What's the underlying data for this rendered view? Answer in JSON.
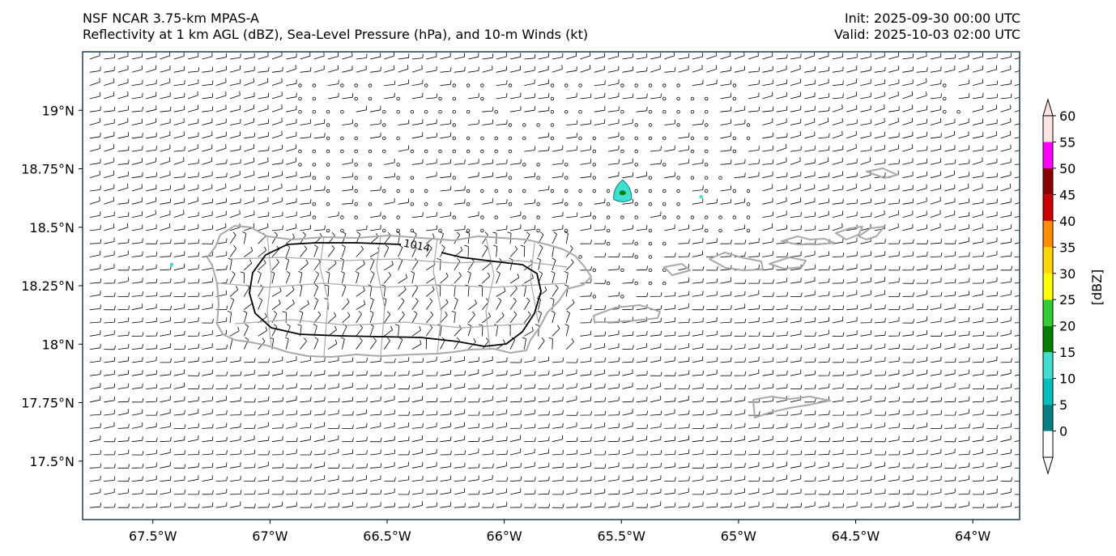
{
  "header": {
    "line1_left": "NSF NCAR 3.75-km MPAS-A",
    "line2_left": "Reflectivity at 1 km AGL (dBZ), Sea-Level Pressure (hPa), and 10-m Winds (kt)",
    "line1_right": "Init: 2025-09-30 00:00 UTC",
    "line2_right": "Valid: 2025-10-03 02:00 UTC"
  },
  "map": {
    "lon_range": [
      -67.8,
      -63.8
    ],
    "lat_range": [
      17.25,
      19.25
    ],
    "lat_ticks": [
      {
        "value": 19.0,
        "label": "19°N"
      },
      {
        "value": 18.75,
        "label": "18.75°N"
      },
      {
        "value": 18.5,
        "label": "18.5°N"
      },
      {
        "value": 18.25,
        "label": "18.25°N"
      },
      {
        "value": 18.0,
        "label": "18°N"
      },
      {
        "value": 17.75,
        "label": "17.75°N"
      },
      {
        "value": 17.5,
        "label": "17.5°N"
      }
    ],
    "lon_ticks": [
      {
        "value": -67.5,
        "label": "67.5°W"
      },
      {
        "value": -67.0,
        "label": "67°W"
      },
      {
        "value": -66.5,
        "label": "66.5°W"
      },
      {
        "value": -66.0,
        "label": "66°W"
      },
      {
        "value": -65.5,
        "label": "65.5°W"
      },
      {
        "value": -65.0,
        "label": "65°W"
      },
      {
        "value": -64.5,
        "label": "64.5°W"
      },
      {
        "value": -64.0,
        "label": "64°W"
      }
    ],
    "isobar_label": "1014",
    "reflectivity_cells": [
      {
        "lon": -65.495,
        "lat": 18.64,
        "dbz": 15
      },
      {
        "lon": -67.42,
        "lat": 18.34,
        "dbz": 10
      },
      {
        "lon": -65.16,
        "lat": 18.63,
        "dbz": 10
      }
    ]
  },
  "colorbar": {
    "unit_label": "[dBZ]",
    "levels": [
      "0",
      "5",
      "10",
      "15",
      "20",
      "25",
      "30",
      "35",
      "40",
      "45",
      "50",
      "55",
      "60"
    ],
    "colors": [
      "#008080",
      "#00bfbf",
      "#40e0d0",
      "#008000",
      "#32cd32",
      "#ffff00",
      "#ffd700",
      "#ff8c00",
      "#cc0000",
      "#8b0000",
      "#ff00ff",
      "#ffe4e1"
    ],
    "over_color": "#ffe4e1"
  },
  "colors": {
    "coast": "#a9a9a9",
    "barb": "#000000",
    "frame": "#1f3b57"
  }
}
